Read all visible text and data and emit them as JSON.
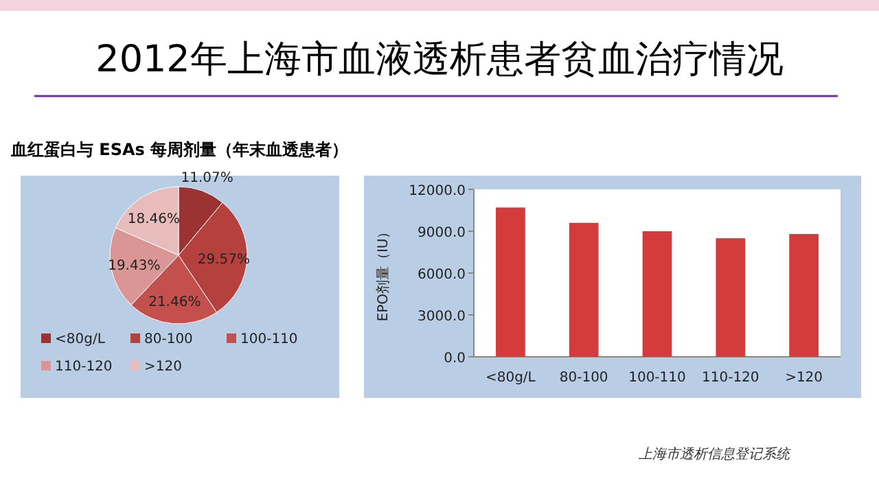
{
  "chart_data": [
    {
      "type": "pie",
      "title": "2012年上海市血液透析患者贫血治疗情况",
      "subtitle": "血红蛋白与 ESAs 每周剂量（年末血透患者）",
      "categories": [
        "<80g/L",
        "80-100",
        "100-110",
        "110-120",
        ">120"
      ],
      "values": [
        11.07,
        29.57,
        21.46,
        19.43,
        18.46
      ],
      "value_labels": [
        "11.07%",
        "29.57%",
        "21.46%",
        "19.43%",
        "18.46%"
      ],
      "colors": [
        "#9b3333",
        "#b5413f",
        "#c4504d",
        "#d99694",
        "#e8bcbb"
      ],
      "legend": "bottom"
    },
    {
      "type": "bar",
      "categories": [
        "<80g/L",
        "80-100",
        "100-110",
        "110-120",
        ">120"
      ],
      "values": [
        10700,
        9600,
        9000,
        8500,
        8800
      ],
      "color": "#d43c3c",
      "ylabel": "EPO剂量（IU）",
      "ylim": [
        0,
        12000
      ],
      "yticks": [
        {
          "value": 0,
          "label": "0.0"
        },
        {
          "value": 3000,
          "label": "3000.0"
        },
        {
          "value": 6000,
          "label": "6000.0"
        },
        {
          "value": 9000,
          "label": "9000.0"
        },
        {
          "value": 12000,
          "label": "12000.0"
        }
      ],
      "annotations": [
        "上海市透析信息登记系统"
      ]
    }
  ]
}
